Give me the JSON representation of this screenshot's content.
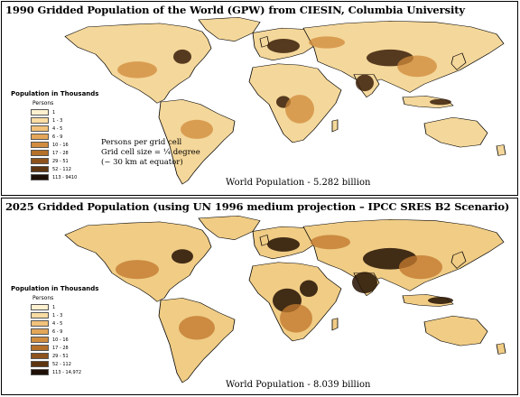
{
  "top": {
    "title": "1990 Gridded Population of the World (GPW) from CIESIN, Columbia University",
    "legend_title": "Population in Thousands",
    "legend_sub": "Persons",
    "legend": [
      {
        "label": "1",
        "color": "#fff1cf"
      },
      {
        "label": "1 - 3",
        "color": "#fbdca2"
      },
      {
        "label": "4 - 5",
        "color": "#f2c27a"
      },
      {
        "label": "6 - 9",
        "color": "#e4a659"
      },
      {
        "label": "10 - 16",
        "color": "#d18c3e"
      },
      {
        "label": "17 - 28",
        "color": "#b5702a"
      },
      {
        "label": "29 - 51",
        "color": "#8e531d"
      },
      {
        "label": "52 - 112",
        "color": "#5e3510"
      },
      {
        "label": "113 - 9410",
        "color": "#1e1007"
      }
    ],
    "note_lines": [
      "Persons per grid cell",
      "Grid cell size = ¼ degree",
      "(~ 30 km at equator)"
    ],
    "caption": "World Population - 5.282 billion"
  },
  "bottom": {
    "title": "2025 Gridded Population (using UN 1996 medium projection – IPCC SRES B2 Scenario)",
    "legend_title": "Population in Thousands",
    "legend_sub": "Persons",
    "legend": [
      {
        "label": "1",
        "color": "#fff1cf"
      },
      {
        "label": "1 - 3",
        "color": "#fbdca2"
      },
      {
        "label": "4 - 5",
        "color": "#f2c27a"
      },
      {
        "label": "6 - 9",
        "color": "#e4a659"
      },
      {
        "label": "10 - 16",
        "color": "#d18c3e"
      },
      {
        "label": "17 - 28",
        "color": "#b5702a"
      },
      {
        "label": "29 - 51",
        "color": "#8e531d"
      },
      {
        "label": "52 - 112",
        "color": "#5e3510"
      },
      {
        "label": "113 - 14,972",
        "color": "#1e1007"
      }
    ],
    "caption": "World Population - 8.039 billion"
  },
  "colors": {
    "base": "#f4d79a",
    "mid": "#d08a3a",
    "dark": "#3a1f0a",
    "outline": "#000000"
  }
}
